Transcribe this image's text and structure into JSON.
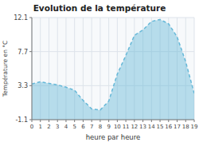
{
  "chart_data": {
    "type": "area",
    "title": "Evolution de la température",
    "x_label": "heure par heure",
    "y_label": "Température en °C",
    "x": [
      0,
      1,
      2,
      3,
      4,
      5,
      6,
      7,
      8,
      9,
      10,
      11,
      12,
      13,
      14,
      15,
      16,
      17,
      18,
      19
    ],
    "values": [
      3.5,
      3.8,
      3.6,
      3.4,
      3.1,
      2.7,
      1.4,
      0.3,
      0.15,
      1.3,
      4.8,
      7.2,
      9.8,
      10.5,
      11.6,
      11.85,
      11.3,
      9.6,
      6.4,
      2.3
    ],
    "color": "#66b8d8",
    "line_style": "dashed",
    "xlim": [
      0,
      19
    ],
    "xticks": [
      0,
      1,
      2,
      3,
      4,
      5,
      6,
      7,
      8,
      9,
      10,
      11,
      12,
      13,
      14,
      15,
      16,
      17,
      18,
      19
    ],
    "ylim": [
      -1.1,
      12.1
    ],
    "yticks": [
      -1.1,
      3.3,
      7.7,
      12.1
    ],
    "grid": true
  }
}
